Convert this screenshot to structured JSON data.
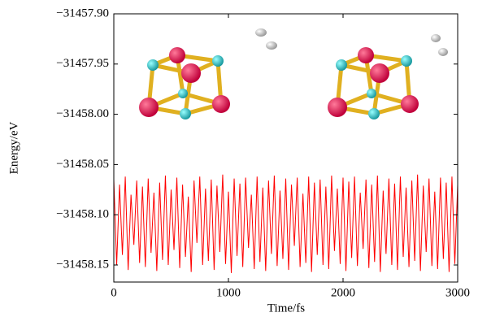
{
  "chart_data": {
    "type": "line",
    "x_label": "Time/fs",
    "y_label": "Energy/eV",
    "x": [
      0,
      25,
      50,
      75,
      100,
      125,
      150,
      175,
      200,
      225,
      250,
      275,
      300,
      325,
      350,
      375,
      400,
      425,
      450,
      475,
      500,
      525,
      550,
      575,
      600,
      625,
      650,
      675,
      700,
      725,
      750,
      775,
      800,
      825,
      850,
      875,
      900,
      925,
      950,
      975,
      1000,
      1025,
      1050,
      1075,
      1100,
      1125,
      1150,
      1175,
      1200,
      1225,
      1250,
      1275,
      1300,
      1325,
      1350,
      1375,
      1400,
      1425,
      1450,
      1475,
      1500,
      1525,
      1550,
      1575,
      1600,
      1625,
      1650,
      1675,
      1700,
      1725,
      1750,
      1775,
      1800,
      1825,
      1850,
      1875,
      1900,
      1925,
      1950,
      1975,
      2000,
      2025,
      2050,
      2075,
      2100,
      2125,
      2150,
      2175,
      2200,
      2225,
      2250,
      2275,
      2300,
      2325,
      2350,
      2375,
      2400,
      2425,
      2450,
      2475,
      2500,
      2525,
      2550,
      2575,
      2600,
      2625,
      2650,
      2675,
      2700,
      2725,
      2750,
      2775,
      2800,
      2825,
      2850,
      2875,
      2900,
      2925,
      2950,
      2975,
      3000
    ],
    "values": [
      -31458.065,
      -31458.15,
      -31458.07,
      -31458.14,
      -31458.062,
      -31458.155,
      -31458.08,
      -31458.13,
      -31458.066,
      -31458.148,
      -31458.072,
      -31458.152,
      -31458.064,
      -31458.138,
      -31458.078,
      -31458.156,
      -31458.068,
      -31458.145,
      -31458.061,
      -31458.15,
      -31458.075,
      -31458.135,
      -31458.063,
      -31458.153,
      -31458.07,
      -31458.142,
      -31458.082,
      -31458.157,
      -31458.066,
      -31458.128,
      -31458.062,
      -31458.15,
      -31458.074,
      -31458.146,
      -31458.065,
      -31458.155,
      -31458.071,
      -31458.137,
      -31458.06,
      -31458.149,
      -31458.077,
      -31458.158,
      -31458.064,
      -31458.141,
      -31458.069,
      -31458.152,
      -31458.063,
      -31458.133,
      -31458.08,
      -31458.154,
      -31458.062,
      -31458.147,
      -31458.073,
      -31458.156,
      -31458.066,
      -31458.139,
      -31458.061,
      -31458.151,
      -31458.076,
      -31458.144,
      -31458.064,
      -31458.155,
      -31458.07,
      -31458.131,
      -31458.063,
      -31458.152,
      -31458.079,
      -31458.148,
      -31458.062,
      -31458.157,
      -31458.068,
      -31458.14,
      -31458.065,
      -31458.15,
      -31458.072,
      -31458.154,
      -31458.061,
      -31458.136,
      -31458.074,
      -31458.149,
      -31458.063,
      -31458.156,
      -31458.067,
      -31458.143,
      -31458.062,
      -31458.151,
      -31458.078,
      -31458.134,
      -31458.065,
      -31458.153,
      -31458.07,
      -31458.147,
      -31458.061,
      -31458.157,
      -31458.076,
      -31458.139,
      -31458.064,
      -31458.15,
      -31458.069,
      -31458.155,
      -31458.062,
      -31458.142,
      -31458.073,
      -31458.152,
      -31458.066,
      -31458.146,
      -31458.06,
      -31458.156,
      -31458.071,
      -31458.137,
      -31458.064,
      -31458.151,
      -31458.077,
      -31458.154,
      -31458.063,
      -31458.144,
      -31458.068,
      -31458.157,
      -31458.062,
      -31458.149,
      -31458.07
    ],
    "color": "#ff0000",
    "xlim": [
      0,
      3000
    ],
    "xticks": [
      0,
      1000,
      2000,
      3000
    ],
    "ylim": [
      -31458.167,
      -31457.9
    ],
    "yticks": [
      {
        "value": -31457.9,
        "label": "−31457.90"
      },
      {
        "value": -31457.95,
        "label": "−31457.95"
      },
      {
        "value": -31458.0,
        "label": "−31458.00"
      },
      {
        "value": -31458.05,
        "label": "−31458.05"
      },
      {
        "value": -31458.1,
        "label": "−31458.10"
      },
      {
        "value": -31458.15,
        "label": "−31458.15"
      }
    ]
  }
}
